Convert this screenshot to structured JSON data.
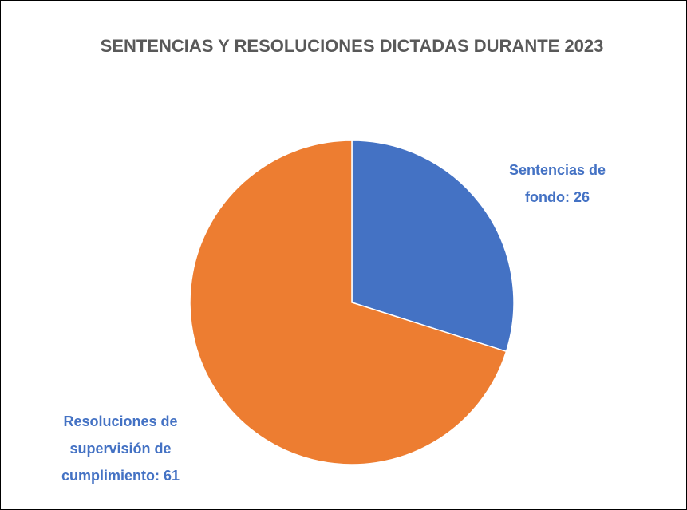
{
  "chart_data": {
    "type": "pie",
    "title": "SENTENCIAS Y RESOLUCIONES DICTADAS DURANTE 2023",
    "values": [
      26,
      61
    ],
    "value_labels": [
      "Sentencias de fondo: 26",
      "Resoluciones de supervisión de cumplimiento: 61"
    ],
    "colors": [
      "#4472c4",
      "#ed7d31"
    ],
    "label_color": "#4472c4"
  }
}
